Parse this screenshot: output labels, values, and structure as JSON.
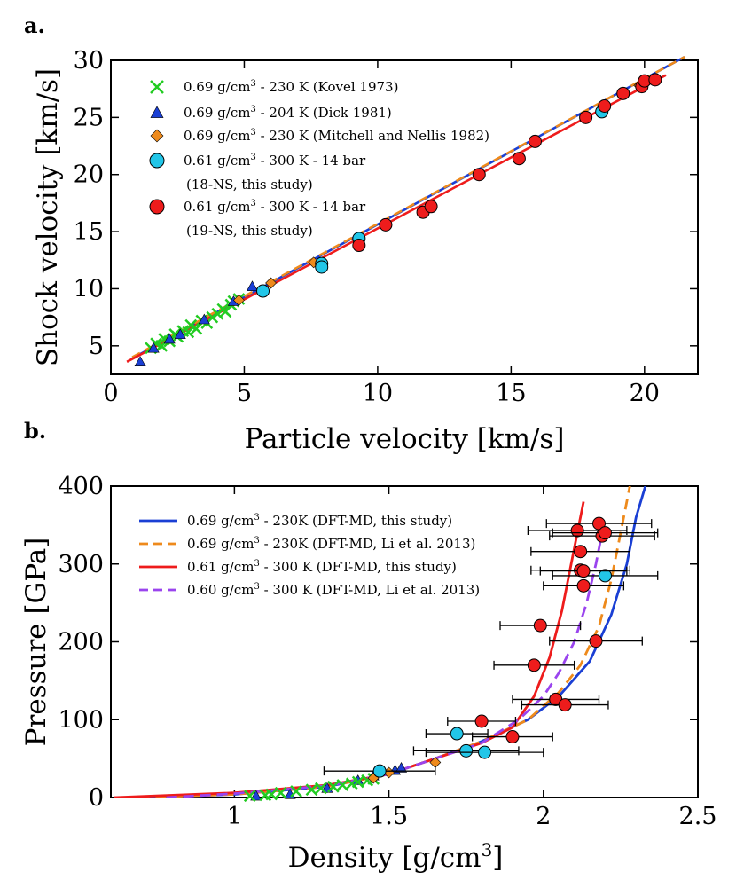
{
  "chart_data": [
    {
      "type": "scatter",
      "panel": "a.",
      "xlabel": "Particle velocity [km/s]",
      "ylabel": "Shock velocity [km/s]",
      "xlim": [
        0,
        22
      ],
      "ylim": [
        2.5,
        30
      ],
      "xticks": [
        0,
        5,
        10,
        15,
        20
      ],
      "yticks": [
        5,
        10,
        15,
        20,
        25,
        30
      ],
      "legend_position": "top-left",
      "series": [
        {
          "name": "Kovel 1973",
          "label": "0.69 g/cm³ - 230 K (Kovel 1973)",
          "marker": "x",
          "color": "#22cc22",
          "points": [
            [
              1.5,
              4.8
            ],
            [
              1.7,
              5.2
            ],
            [
              1.9,
              5.0
            ],
            [
              2.0,
              5.6
            ],
            [
              2.2,
              5.4
            ],
            [
              2.4,
              6.0
            ],
            [
              2.5,
              5.8
            ],
            [
              2.7,
              6.3
            ],
            [
              2.9,
              6.2
            ],
            [
              3.0,
              6.8
            ],
            [
              3.2,
              6.5
            ],
            [
              3.4,
              7.2
            ],
            [
              3.6,
              7.0
            ],
            [
              3.8,
              7.5
            ],
            [
              4.0,
              7.8
            ],
            [
              4.2,
              8.2
            ],
            [
              4.3,
              8.0
            ],
            [
              4.5,
              8.6
            ],
            [
              4.6,
              8.9
            ],
            [
              4.8,
              9.1
            ]
          ]
        },
        {
          "name": "Dick 1981",
          "label": "0.69 g/cm³ - 204 K (Dick 1981)",
          "marker": "triangle",
          "color": "#1a3fd4",
          "points": [
            [
              1.1,
              3.6
            ],
            [
              1.6,
              4.8
            ],
            [
              2.2,
              5.6
            ],
            [
              2.6,
              6.0
            ],
            [
              3.5,
              7.3
            ],
            [
              4.6,
              8.9
            ],
            [
              5.3,
              10.2
            ]
          ]
        },
        {
          "name": "Mitchell and Nellis 1982",
          "label": "0.69 g/cm³ - 230 K (Mitchell and Nellis 1982)",
          "marker": "diamond",
          "color": "#ee8a1c",
          "points": [
            [
              4.8,
              9.0
            ],
            [
              6.0,
              10.5
            ],
            [
              7.6,
              12.3
            ],
            [
              19.8,
              27.8
            ]
          ]
        },
        {
          "name": "18-NS, this study",
          "label": "0.61 g/cm³ - 300 K - 14 bar",
          "sublabel": "(18-NS, this study)",
          "marker": "circle",
          "color": "#22c6e8",
          "points": [
            [
              5.7,
              9.8
            ],
            [
              7.9,
              12.2
            ],
            [
              7.9,
              11.9
            ],
            [
              9.3,
              14.4
            ],
            [
              18.4,
              25.5
            ]
          ]
        },
        {
          "name": "19-NS, this study",
          "label": "0.61 g/cm³ - 300 K - 14 bar",
          "sublabel": "(19-NS, this study)",
          "marker": "circle",
          "color": "#ee1c1c",
          "points": [
            [
              9.3,
              13.8
            ],
            [
              10.3,
              15.6
            ],
            [
              11.7,
              16.7
            ],
            [
              12.0,
              17.2
            ],
            [
              13.8,
              20.0
            ],
            [
              15.3,
              21.4
            ],
            [
              15.9,
              22.9
            ],
            [
              17.8,
              25.0
            ],
            [
              18.5,
              26.0
            ],
            [
              19.2,
              27.1
            ],
            [
              19.9,
              27.7
            ],
            [
              20.0,
              28.2
            ],
            [
              20.4,
              28.3
            ]
          ]
        }
      ],
      "fits": [
        {
          "color": "#1a3fd4",
          "dash": "none",
          "points": [
            [
              0.8,
              3.9
            ],
            [
              21.5,
              30.3
            ]
          ]
        },
        {
          "color": "#ee8a1c",
          "dash": "dashed",
          "points": [
            [
              0.8,
              4.0
            ],
            [
              21.5,
              30.3
            ]
          ]
        },
        {
          "color": "#ee1c1c",
          "dash": "none",
          "points": [
            [
              0.6,
              3.6
            ],
            [
              20.8,
              28.7
            ]
          ]
        }
      ]
    },
    {
      "type": "scatter",
      "panel": "b.",
      "xlabel": "Density [g/cm³]",
      "ylabel": "Pressure [GPa]",
      "xlim": [
        0.6,
        2.5
      ],
      "ylim": [
        0,
        400
      ],
      "xticks": [
        1,
        1.5,
        2,
        2.5
      ],
      "yticks": [
        0,
        100,
        200,
        300,
        400
      ],
      "legend_position": "top-left",
      "lines": [
        {
          "label": "0.69 g/cm³ - 230K (DFT-MD, this study)",
          "color": "#1a3fd4",
          "dash": "none",
          "points": [
            [
              0.69,
              0
            ],
            [
              1.0,
              4
            ],
            [
              1.3,
              14
            ],
            [
              1.5,
              30
            ],
            [
              1.65,
              50
            ],
            [
              1.8,
              72
            ],
            [
              1.95,
              100
            ],
            [
              2.05,
              130
            ],
            [
              2.15,
              175
            ],
            [
              2.22,
              235
            ],
            [
              2.27,
              300
            ],
            [
              2.3,
              360
            ],
            [
              2.33,
              400
            ]
          ]
        },
        {
          "label": "0.69 g/cm³ - 230K (DFT-MD, Li et al. 2013)",
          "color": "#ee8a1c",
          "dash": "dashed",
          "points": [
            [
              0.69,
              0
            ],
            [
              1.0,
              4
            ],
            [
              1.3,
              14
            ],
            [
              1.5,
              30
            ],
            [
              1.65,
              50
            ],
            [
              1.8,
              72
            ],
            [
              1.95,
              100
            ],
            [
              2.05,
              135
            ],
            [
              2.12,
              170
            ],
            [
              2.18,
              220
            ],
            [
              2.22,
              280
            ],
            [
              2.25,
              340
            ],
            [
              2.28,
              400
            ]
          ]
        },
        {
          "label": "0.61 g/cm³ - 300 K (DFT-MD, this study)",
          "color": "#ee1c1c",
          "dash": "none",
          "points": [
            [
              0.61,
              0
            ],
            [
              1.0,
              6
            ],
            [
              1.3,
              16
            ],
            [
              1.5,
              30
            ],
            [
              1.65,
              50
            ],
            [
              1.8,
              70
            ],
            [
              1.9,
              90
            ],
            [
              1.97,
              130
            ],
            [
              2.02,
              180
            ],
            [
              2.06,
              240
            ],
            [
              2.09,
              300
            ],
            [
              2.11,
              340
            ],
            [
              2.13,
              380
            ]
          ]
        },
        {
          "label": "0.60 g/cm³ - 300 K (DFT-MD, Li et al. 2013)",
          "color": "#9a44ee",
          "dash": "dashed",
          "points": [
            [
              0.78,
              0
            ],
            [
              1.0,
              5
            ],
            [
              1.3,
              15
            ],
            [
              1.5,
              30
            ],
            [
              1.65,
              50
            ],
            [
              1.8,
              70
            ],
            [
              1.92,
              100
            ],
            [
              2.0,
              130
            ],
            [
              2.05,
              160
            ],
            [
              2.1,
              200
            ],
            [
              2.14,
              250
            ],
            [
              2.17,
              300
            ],
            [
              2.19,
              340
            ]
          ]
        }
      ],
      "series": [
        {
          "name": "Dick 1981",
          "marker": "triangle",
          "color": "#1a3fd4",
          "points": [
            [
              1.07,
              2
            ],
            [
              1.18,
              4
            ],
            [
              1.3,
              12
            ],
            [
              1.4,
              22
            ],
            [
              1.45,
              28
            ],
            [
              1.52,
              35
            ],
            [
              1.54,
              38
            ]
          ]
        },
        {
          "name": "Kovel 1973",
          "marker": "x",
          "color": "#22cc22",
          "points": [
            [
              1.05,
              2
            ],
            [
              1.1,
              3
            ],
            [
              1.12,
              4
            ],
            [
              1.15,
              6
            ],
            [
              1.2,
              8
            ],
            [
              1.25,
              10
            ],
            [
              1.28,
              12
            ],
            [
              1.32,
              14
            ],
            [
              1.35,
              16
            ],
            [
              1.38,
              18
            ],
            [
              1.4,
              20
            ],
            [
              1.43,
              22
            ],
            [
              1.45,
              24
            ]
          ]
        },
        {
          "name": "Mitchell and Nellis 1982",
          "marker": "diamond",
          "color": "#ee8a1c",
          "points": [
            [
              1.45,
              25
            ],
            [
              1.5,
              32
            ],
            [
              1.65,
              45
            ]
          ]
        },
        {
          "name": "18-NS, this study",
          "marker": "circle",
          "color": "#22c6e8",
          "points": [
            [
              1.47,
              34,
              0.18
            ],
            [
              1.72,
              82,
              0.1
            ],
            [
              1.75,
              60,
              0.17
            ],
            [
              1.81,
              58,
              0.19
            ],
            [
              2.2,
              285,
              0.17
            ]
          ]
        },
        {
          "name": "19-NS, this study",
          "marker": "circle",
          "color": "#ee1c1c",
          "points": [
            [
              1.8,
              98,
              0.11
            ],
            [
              1.9,
              78,
              0.13
            ],
            [
              1.97,
              170,
              0.13
            ],
            [
              1.99,
              221,
              0.13
            ],
            [
              2.04,
              126,
              0.14
            ],
            [
              2.07,
              119,
              0.14
            ],
            [
              2.11,
              343,
              0.16
            ],
            [
              2.12,
              316,
              0.16
            ],
            [
              2.12,
              292,
              0.16
            ],
            [
              2.13,
              291,
              0.14
            ],
            [
              2.13,
              272,
              0.13
            ],
            [
              2.17,
              201,
              0.15
            ],
            [
              2.18,
              352,
              0.17
            ],
            [
              2.19,
              336,
              0.17
            ],
            [
              2.2,
              340,
              0.17
            ]
          ]
        }
      ]
    }
  ],
  "legend_a": [
    {
      "marker": "x",
      "color": "#22cc22",
      "pre": "0.69 g/cm",
      "sup": "3",
      "post": " - 230 K (Kovel 1973)"
    },
    {
      "marker": "triangle",
      "color": "#1a3fd4",
      "pre": "0.69 g/cm",
      "sup": "3",
      "post": " - 204 K (Dick 1981)"
    },
    {
      "marker": "diamond",
      "color": "#ee8a1c",
      "pre": "0.69 g/cm",
      "sup": "3",
      "post": " - 230 K (Mitchell and Nellis 1982)"
    },
    {
      "marker": "circle",
      "color": "#22c6e8",
      "pre": "0.61 g/cm",
      "sup": "3",
      "post": " - 300 K - 14 bar",
      "sub": "(18-NS, this study)"
    },
    {
      "marker": "circle",
      "color": "#ee1c1c",
      "pre": "0.61 g/cm",
      "sup": "3",
      "post": " - 300 K - 14 bar",
      "sub": "(19-NS, this study)"
    }
  ],
  "legend_b": [
    {
      "color": "#1a3fd4",
      "dash": "none",
      "pre": "0.69 g/cm",
      "sup": "3",
      "post": "  - 230K (DFT-MD, this study)"
    },
    {
      "color": "#ee8a1c",
      "dash": "dashed",
      "pre": "0.69 g/cm",
      "sup": "3",
      "post": "  - 230K (DFT-MD, Li et al. 2013)"
    },
    {
      "color": "#ee1c1c",
      "dash": "none",
      "pre": "0.61 g/cm",
      "sup": "3",
      "post": " - 300 K (DFT-MD, this study)"
    },
    {
      "color": "#9a44ee",
      "dash": "dashed",
      "pre": "0.60 g/cm",
      "sup": "3",
      "post": " - 300 K (DFT-MD, Li et al. 2013)"
    }
  ]
}
